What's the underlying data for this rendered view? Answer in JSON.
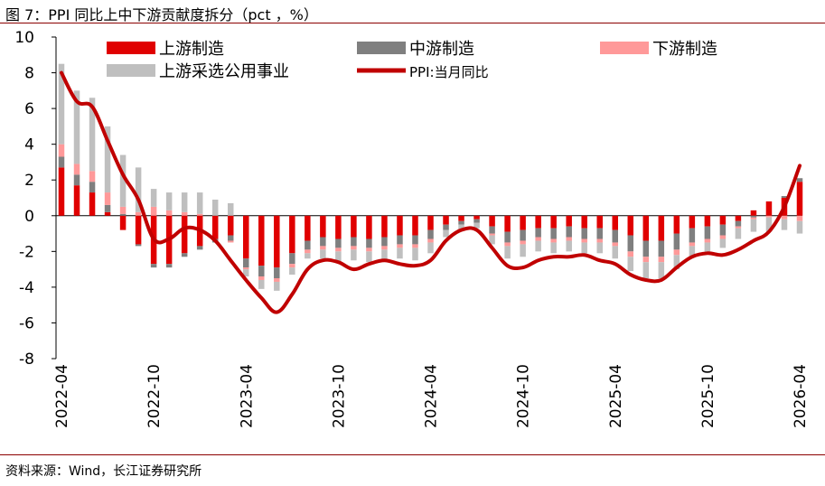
{
  "title": "图 7：PPI 同比上中下游贡献度拆分（pct ，%）",
  "source": "资料来源：Wind，长江证券研究所",
  "chart_data": {
    "type": "bar",
    "stacked": true,
    "y_ticks": [
      "10",
      "8",
      "6",
      "4",
      "2",
      "0",
      "-2",
      "-4",
      "-6",
      "-8"
    ],
    "ylim": [
      -8,
      10
    ],
    "x_ticks": [
      "2022-04",
      "2022-10",
      "2023-04",
      "2023-10",
      "2024-04",
      "2024-10",
      "2025-04",
      "2025-10",
      "2026-04"
    ],
    "x_tick_index": [
      0,
      6,
      12,
      18,
      24,
      30,
      36,
      42,
      48
    ],
    "categories": [
      "2022-04",
      "2022-05",
      "2022-06",
      "2022-07",
      "2022-08",
      "2022-09",
      "2022-10",
      "2022-11",
      "2022-12",
      "2023-01",
      "2023-02",
      "2023-03",
      "2023-04",
      "2023-05",
      "2023-06",
      "2023-07",
      "2023-08",
      "2023-09",
      "2023-10",
      "2023-11",
      "2023-12",
      "2024-01",
      "2024-02",
      "2024-03",
      "2024-04",
      "2024-05",
      "2024-06",
      "2024-07",
      "2024-08",
      "2024-09",
      "2024-10",
      "2024-11",
      "2024-12",
      "2025-01",
      "2025-02",
      "2025-03",
      "2025-04",
      "2025-05",
      "2025-06",
      "2025-07",
      "2025-08",
      "2025-09",
      "2025-10",
      "2025-11",
      "2025-12",
      "2026-01",
      "2026-02",
      "2026-03",
      "2026-04"
    ],
    "series": [
      {
        "name": "上游制造",
        "kind": "bar",
        "color": "#e00000",
        "values": [
          2.7,
          1.7,
          1.3,
          0.2,
          -0.8,
          -1.6,
          -2.7,
          -2.7,
          -2.1,
          -1.7,
          -1.3,
          -1.1,
          -2.4,
          -2.8,
          -2.9,
          -2.1,
          -1.4,
          -1.2,
          -1.3,
          -1.2,
          -1.3,
          -1.2,
          -1.1,
          -1.1,
          -0.8,
          -0.5,
          -0.3,
          -0.2,
          -0.6,
          -0.9,
          -0.8,
          -0.7,
          -0.7,
          -0.6,
          -0.7,
          -0.7,
          -0.8,
          -1.1,
          -1.4,
          -1.4,
          -1.0,
          -0.7,
          -0.6,
          -0.5,
          -0.3,
          0.3,
          0.8,
          1.0,
          1.9
        ]
      },
      {
        "name": "中游制造",
        "kind": "bar",
        "color": "#7f7f7f",
        "values": [
          0.6,
          0.6,
          0.6,
          0.4,
          0.1,
          -0.1,
          -0.2,
          -0.2,
          -0.2,
          -0.2,
          -0.2,
          -0.3,
          -0.5,
          -0.6,
          -0.6,
          -0.6,
          -0.5,
          -0.5,
          -0.5,
          -0.5,
          -0.5,
          -0.5,
          -0.5,
          -0.5,
          -0.5,
          -0.3,
          -0.2,
          -0.2,
          -0.4,
          -0.6,
          -0.6,
          -0.5,
          -0.6,
          -0.6,
          -0.6,
          -0.6,
          -0.7,
          -0.9,
          -0.9,
          -0.9,
          -0.9,
          -0.8,
          -0.7,
          -0.6,
          -0.3,
          -0.1,
          0.0,
          0.1,
          0.2
        ]
      },
      {
        "name": "下游制造",
        "kind": "bar",
        "color": "#ff9999",
        "values": [
          0.7,
          0.6,
          0.6,
          0.7,
          0.4,
          0.2,
          0.5,
          0.3,
          0.2,
          0.1,
          0.0,
          -0.1,
          -0.1,
          -0.2,
          -0.2,
          -0.2,
          -0.2,
          -0.2,
          -0.2,
          -0.2,
          -0.2,
          -0.2,
          -0.2,
          -0.2,
          -0.2,
          0.0,
          0.0,
          0.0,
          -0.1,
          -0.2,
          -0.2,
          -0.2,
          -0.2,
          -0.2,
          -0.2,
          -0.2,
          -0.2,
          -0.3,
          -0.3,
          -0.3,
          -0.3,
          -0.2,
          -0.2,
          -0.2,
          -0.1,
          -0.1,
          -0.1,
          -0.2,
          -0.3
        ]
      },
      {
        "name": "上游采选公用事业",
        "kind": "bar",
        "color": "#bfbfbf",
        "values": [
          4.5,
          4.1,
          4.1,
          3.7,
          2.9,
          2.5,
          1.0,
          1.0,
          1.1,
          1.2,
          0.9,
          0.7,
          -0.4,
          -0.5,
          -0.5,
          -0.4,
          -0.3,
          -0.5,
          -0.6,
          -0.6,
          -0.6,
          -0.6,
          -0.6,
          -0.7,
          -0.6,
          -0.4,
          -0.3,
          -0.3,
          -0.5,
          -0.7,
          -0.7,
          -0.6,
          -0.6,
          -0.6,
          -0.6,
          -0.6,
          -0.7,
          -0.8,
          -0.9,
          -0.9,
          -0.8,
          -0.6,
          -0.6,
          -0.5,
          -0.6,
          -0.7,
          -0.8,
          -0.6,
          -0.7
        ]
      },
      {
        "name": "PPI:当月同比",
        "kind": "line",
        "color": "#c00000",
        "values": [
          8.0,
          6.4,
          6.1,
          4.2,
          2.3,
          0.9,
          -1.3,
          -1.3,
          -0.7,
          -0.8,
          -1.4,
          -2.5,
          -3.6,
          -4.6,
          -5.4,
          -4.4,
          -3.0,
          -2.5,
          -2.6,
          -3.0,
          -2.7,
          -2.5,
          -2.7,
          -2.8,
          -2.5,
          -1.4,
          -0.8,
          -0.8,
          -1.8,
          -2.8,
          -2.9,
          -2.5,
          -2.3,
          -2.3,
          -2.2,
          -2.5,
          -2.7,
          -3.3,
          -3.6,
          -3.6,
          -2.9,
          -2.3,
          -2.1,
          -2.2,
          -1.9,
          -1.4,
          -0.9,
          0.5,
          2.8
        ]
      }
    ],
    "legend": {
      "placement": "top",
      "items": [
        {
          "label": "上游制造",
          "kind": "bar",
          "color": "#e00000"
        },
        {
          "label": "中游制造",
          "kind": "bar",
          "color": "#7f7f7f"
        },
        {
          "label": "下游制造",
          "kind": "bar",
          "color": "#ff9999"
        },
        {
          "label": "上游采选公用事业",
          "kind": "bar",
          "color": "#bfbfbf"
        },
        {
          "label": "PPI:当月同比",
          "kind": "line",
          "color": "#c00000"
        }
      ]
    },
    "grid": false
  }
}
